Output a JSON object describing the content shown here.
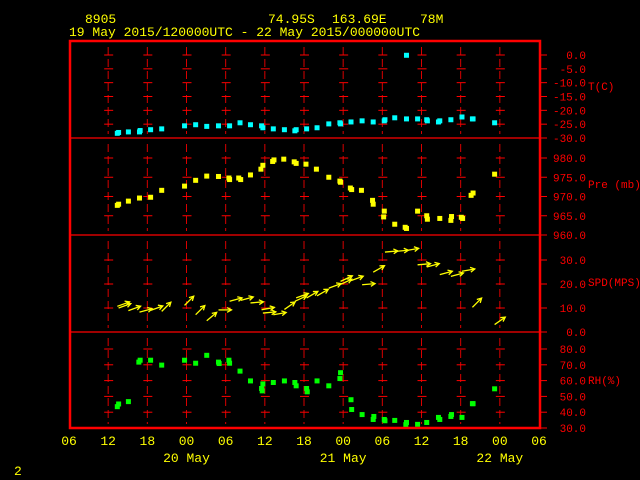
{
  "header": {
    "station": "8905",
    "lat": "74.95S",
    "lon": "163.69E",
    "elev": "78M",
    "period": "19 May 2015/120000UTC - 22 May 2015/000000UTC"
  },
  "page_number": "2",
  "colors": {
    "frame": "#ff0000",
    "temperature": "#00ffff",
    "pressure": "#ffff00",
    "wind": "#ffff00",
    "rh": "#00ff00",
    "axis_text": "#ff0000",
    "time_text": "#ffff00"
  },
  "chart_data": {
    "type": "scatter",
    "x_axis": {
      "range": [
        "2015-05-19 06:00",
        "2015-05-22 06:00"
      ],
      "tick_labels": [
        "06",
        "12",
        "18",
        "00",
        "06",
        "12",
        "18",
        "00",
        "06",
        "12",
        "18",
        "00",
        "06"
      ],
      "date_labels": [
        {
          "time": "2015-05-20 00:00",
          "label": "20 May"
        },
        {
          "time": "2015-05-21 00:00",
          "label": "21 May"
        },
        {
          "time": "2015-05-22 00:00",
          "label": "22 May"
        }
      ],
      "grid": true
    },
    "panels": [
      {
        "key": "temperature",
        "ylabel": "T(C)",
        "ylim": [
          -30,
          0
        ],
        "ticks": [
          "0.0",
          "-5.0",
          "-10.0",
          "-15.0",
          "-20.0",
          "-25.0",
          "-30.0"
        ],
        "tick_values": [
          0,
          -5,
          -10,
          -15,
          -20,
          -25,
          -30
        ],
        "points": [
          [
            "2015-05-19 13:24",
            -28.3
          ],
          [
            "2015-05-19 13:36",
            -28.0
          ],
          [
            "2015-05-19 15:06",
            -27.8
          ],
          [
            "2015-05-19 16:48",
            -27.8
          ],
          [
            "2015-05-19 16:54",
            -27.3
          ],
          [
            "2015-05-19 18:30",
            -27.0
          ],
          [
            "2015-05-19 20:12",
            -26.7
          ],
          [
            "2015-05-19 23:42",
            -25.6
          ],
          [
            "2015-05-20 01:24",
            -25.2
          ],
          [
            "2015-05-20 03:06",
            -25.8
          ],
          [
            "2015-05-20 04:54",
            -25.6
          ],
          [
            "2015-05-20 06:36",
            -25.6
          ],
          [
            "2015-05-20 08:12",
            -24.5
          ],
          [
            "2015-05-20 09:48",
            -25.2
          ],
          [
            "2015-05-20 11:30",
            -25.6
          ],
          [
            "2015-05-20 11:42",
            -26.3
          ],
          [
            "2015-05-20 13:18",
            -26.7
          ],
          [
            "2015-05-20 15:00",
            -27.0
          ],
          [
            "2015-05-20 16:36",
            -27.4
          ],
          [
            "2015-05-20 16:48",
            -27.0
          ],
          [
            "2015-05-20 18:24",
            -26.7
          ],
          [
            "2015-05-20 20:00",
            -26.3
          ],
          [
            "2015-05-20 21:48",
            -24.9
          ],
          [
            "2015-05-20 23:30",
            -24.5
          ],
          [
            "2015-05-20 23:36",
            -24.9
          ],
          [
            "2015-05-21 01:12",
            -24.2
          ],
          [
            "2015-05-21 02:54",
            -23.8
          ],
          [
            "2015-05-21 04:36",
            -24.2
          ],
          [
            "2015-05-21 06:18",
            -23.8
          ],
          [
            "2015-05-21 06:24",
            -23.4
          ],
          [
            "2015-05-21 07:54",
            -22.7
          ],
          [
            "2015-05-21 09:42",
            -0.1
          ],
          [
            "2015-05-21 09:42",
            -23.1
          ],
          [
            "2015-05-21 11:24",
            -23.1
          ],
          [
            "2015-05-21 12:48",
            -23.4
          ],
          [
            "2015-05-21 12:54",
            -23.8
          ],
          [
            "2015-05-21 14:36",
            -24.2
          ],
          [
            "2015-05-21 14:48",
            -23.8
          ],
          [
            "2015-05-21 16:30",
            -23.4
          ],
          [
            "2015-05-21 18:12",
            -22.4
          ],
          [
            "2015-05-21 19:48",
            -23.1
          ],
          [
            "2015-05-21 19:54",
            -23.1
          ],
          [
            "2015-05-21 23:12",
            -24.5
          ]
        ]
      },
      {
        "key": "pressure",
        "ylabel": "Pre (mb)",
        "ylim": [
          960,
          985
        ],
        "ticks": [
          "980.0",
          "975.0",
          "970.0",
          "965.0",
          "960.0"
        ],
        "tick_values": [
          980,
          975,
          970,
          965,
          960
        ],
        "points": [
          [
            "2015-05-19 13:24",
            967.7
          ],
          [
            "2015-05-19 13:36",
            968.0
          ],
          [
            "2015-05-19 15:06",
            968.8
          ],
          [
            "2015-05-19 16:48",
            969.6
          ],
          [
            "2015-05-19 18:30",
            969.8
          ],
          [
            "2015-05-19 20:12",
            971.6
          ],
          [
            "2015-05-19 23:42",
            972.7
          ],
          [
            "2015-05-20 01:24",
            974.2
          ],
          [
            "2015-05-20 03:06",
            975.3
          ],
          [
            "2015-05-20 04:54",
            975.2
          ],
          [
            "2015-05-20 06:30",
            974.8
          ],
          [
            "2015-05-20 06:36",
            974.4
          ],
          [
            "2015-05-20 08:00",
            974.8
          ],
          [
            "2015-05-20 08:18",
            974.4
          ],
          [
            "2015-05-20 09:48",
            975.6
          ],
          [
            "2015-05-20 11:24",
            977.1
          ],
          [
            "2015-05-20 11:42",
            978.1
          ],
          [
            "2015-05-20 13:12",
            979.1
          ],
          [
            "2015-05-20 13:24",
            979.5
          ],
          [
            "2015-05-20 14:54",
            979.7
          ],
          [
            "2015-05-20 16:30",
            979.0
          ],
          [
            "2015-05-20 16:48",
            978.6
          ],
          [
            "2015-05-20 18:18",
            978.4
          ],
          [
            "2015-05-20 19:54",
            977.1
          ],
          [
            "2015-05-20 21:48",
            975.0
          ],
          [
            "2015-05-20 23:30",
            974.0
          ],
          [
            "2015-05-20 23:36",
            973.7
          ],
          [
            "2015-05-21 01:06",
            972.2
          ],
          [
            "2015-05-21 01:18",
            971.8
          ],
          [
            "2015-05-21 02:48",
            971.6
          ],
          [
            "2015-05-21 04:30",
            969.0
          ],
          [
            "2015-05-21 04:36",
            968.0
          ],
          [
            "2015-05-21 06:18",
            966.2
          ],
          [
            "2015-05-21 06:12",
            964.7
          ],
          [
            "2015-05-21 07:54",
            962.8
          ],
          [
            "2015-05-21 09:30",
            962.0
          ],
          [
            "2015-05-21 09:42",
            961.7
          ],
          [
            "2015-05-21 11:24",
            966.2
          ],
          [
            "2015-05-21 12:48",
            965.0
          ],
          [
            "2015-05-21 12:54",
            964.1
          ],
          [
            "2015-05-21 14:48",
            964.3
          ],
          [
            "2015-05-21 16:30",
            963.8
          ],
          [
            "2015-05-21 16:36",
            964.8
          ],
          [
            "2015-05-21 18:06",
            964.6
          ],
          [
            "2015-05-21 18:18",
            964.3
          ],
          [
            "2015-05-21 19:36",
            970.3
          ],
          [
            "2015-05-21 19:54",
            970.9
          ],
          [
            "2015-05-21 23:12",
            975.8
          ]
        ]
      },
      {
        "key": "wind",
        "ylabel": "SPD(MPS)",
        "ylim": [
          0,
          35
        ],
        "ticks": [
          "30.0",
          "20.0",
          "10.0",
          "0.0"
        ],
        "tick_values": [
          30,
          20,
          10,
          0
        ],
        "points_note_fields": [
          "time",
          "speed",
          "direction_deg"
        ],
        "points": [
          [
            "2015-05-19 13:24",
            10.7,
            250
          ],
          [
            "2015-05-19 13:36",
            10.0,
            250
          ],
          [
            "2015-05-19 15:06",
            8.9,
            250
          ],
          [
            "2015-05-19 16:48",
            8.3,
            255
          ],
          [
            "2015-05-19 18:30",
            9.0,
            250
          ],
          [
            "2015-05-19 20:12",
            8.6,
            225
          ],
          [
            "2015-05-19 23:42",
            11.1,
            225
          ],
          [
            "2015-05-20 01:24",
            7.2,
            225
          ],
          [
            "2015-05-20 03:06",
            4.7,
            230
          ],
          [
            "2015-05-20 04:54",
            9.2,
            270
          ],
          [
            "2015-05-20 06:36",
            12.8,
            255
          ],
          [
            "2015-05-20 08:18",
            13.2,
            255
          ],
          [
            "2015-05-20 09:48",
            12.1,
            265
          ],
          [
            "2015-05-20 11:30",
            9.3,
            260
          ],
          [
            "2015-05-20 11:42",
            7.9,
            265
          ],
          [
            "2015-05-20 13:18",
            7.2,
            260
          ],
          [
            "2015-05-20 15:00",
            9.4,
            235
          ],
          [
            "2015-05-20 16:36",
            12.8,
            245
          ],
          [
            "2015-05-20 16:48",
            14.2,
            250
          ],
          [
            "2015-05-20 18:24",
            14.2,
            240
          ],
          [
            "2015-05-20 20:00",
            15.1,
            240
          ],
          [
            "2015-05-20 21:48",
            18.3,
            250
          ],
          [
            "2015-05-20 23:30",
            19.7,
            245
          ],
          [
            "2015-05-20 23:36",
            21.1,
            245
          ],
          [
            "2015-05-21 01:12",
            21.4,
            250
          ],
          [
            "2015-05-21 02:54",
            19.7,
            265
          ],
          [
            "2015-05-21 04:36",
            24.9,
            240
          ],
          [
            "2015-05-21 06:24",
            33.3,
            265
          ],
          [
            "2015-05-21 08:00",
            33.6,
            265
          ],
          [
            "2015-05-21 09:36",
            33.9,
            260
          ],
          [
            "2015-05-21 11:24",
            28.0,
            265
          ],
          [
            "2015-05-21 12:48",
            27.1,
            255
          ],
          [
            "2015-05-21 14:48",
            23.9,
            255
          ],
          [
            "2015-05-21 16:30",
            23.2,
            255
          ],
          [
            "2015-05-21 18:12",
            25.3,
            260
          ],
          [
            "2015-05-21 19:48",
            10.3,
            225
          ],
          [
            "2015-05-21 23:12",
            3.1,
            235
          ]
        ]
      },
      {
        "key": "rh",
        "ylabel": "RH(%)",
        "ylim": [
          30,
          85
        ],
        "ticks": [
          "80.0",
          "70.0",
          "60.0",
          "50.0",
          "40.0",
          "30.0"
        ],
        "tick_values": [
          80,
          70,
          60,
          50,
          40,
          30
        ],
        "points": [
          [
            "2015-05-19 13:24",
            43.5
          ],
          [
            "2015-05-19 13:36",
            45.2
          ],
          [
            "2015-05-19 15:06",
            46.7
          ],
          [
            "2015-05-19 16:42",
            71.7
          ],
          [
            "2015-05-19 16:54",
            72.9
          ],
          [
            "2015-05-19 18:30",
            72.9
          ],
          [
            "2015-05-19 20:12",
            69.8
          ],
          [
            "2015-05-19 23:42",
            72.9
          ],
          [
            "2015-05-20 01:24",
            71.0
          ],
          [
            "2015-05-20 03:06",
            76.0
          ],
          [
            "2015-05-20 04:54",
            71.7
          ],
          [
            "2015-05-20 05:00",
            70.8
          ],
          [
            "2015-05-20 06:30",
            72.9
          ],
          [
            "2015-05-20 06:36",
            71.0
          ],
          [
            "2015-05-20 08:12",
            66.0
          ],
          [
            "2015-05-20 09:48",
            59.8
          ],
          [
            "2015-05-20 11:30",
            55.0
          ],
          [
            "2015-05-20 11:36",
            53.5
          ],
          [
            "2015-05-20 11:42",
            57.9
          ],
          [
            "2015-05-20 13:18",
            58.8
          ],
          [
            "2015-05-20 15:00",
            59.8
          ],
          [
            "2015-05-20 16:36",
            58.8
          ],
          [
            "2015-05-20 16:48",
            56.7
          ],
          [
            "2015-05-20 18:24",
            55.0
          ],
          [
            "2015-05-20 18:30",
            52.9
          ],
          [
            "2015-05-20 20:00",
            59.8
          ],
          [
            "2015-05-20 21:48",
            56.7
          ],
          [
            "2015-05-20 23:30",
            61.3
          ],
          [
            "2015-05-20 23:36",
            65.0
          ],
          [
            "2015-05-21 01:12",
            47.9
          ],
          [
            "2015-05-21 01:18",
            41.7
          ],
          [
            "2015-05-21 02:54",
            38.5
          ],
          [
            "2015-05-21 04:36",
            35.4
          ],
          [
            "2015-05-21 04:42",
            37.3
          ],
          [
            "2015-05-21 06:18",
            35.4
          ],
          [
            "2015-05-21 06:24",
            34.6
          ],
          [
            "2015-05-21 07:54",
            34.8
          ],
          [
            "2015-05-21 09:36",
            32.1
          ],
          [
            "2015-05-21 09:42",
            33.5
          ],
          [
            "2015-05-21 11:24",
            32.3
          ],
          [
            "2015-05-21 12:48",
            33.5
          ],
          [
            "2015-05-21 14:36",
            36.7
          ],
          [
            "2015-05-21 14:48",
            35.4
          ],
          [
            "2015-05-21 16:30",
            37.3
          ],
          [
            "2015-05-21 16:36",
            38.5
          ],
          [
            "2015-05-21 18:12",
            36.7
          ],
          [
            "2015-05-21 19:48",
            45.4
          ],
          [
            "2015-05-21 19:54",
            45.4
          ],
          [
            "2015-05-21 23:12",
            54.8
          ]
        ]
      }
    ]
  }
}
